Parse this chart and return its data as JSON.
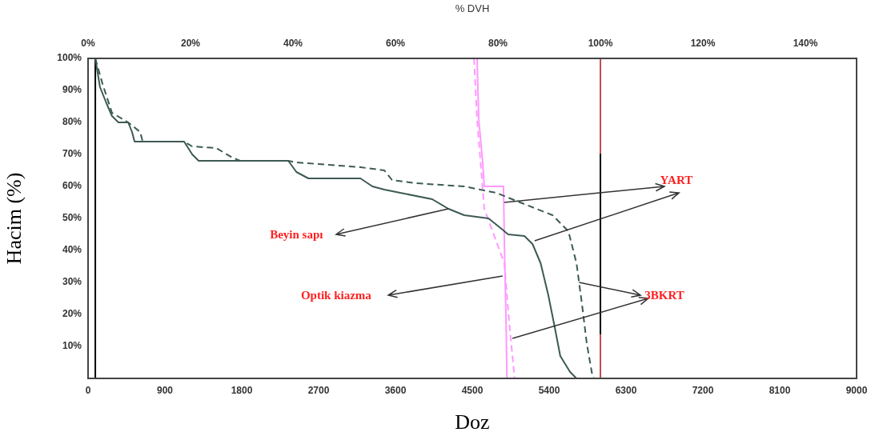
{
  "chart_data": {
    "type": "line",
    "x2label": "% DVH",
    "xlabel": "Doz",
    "ylabel": "Hacim (%)",
    "xlim": [
      0,
      9000
    ],
    "xticks": [
      0,
      900,
      1800,
      2700,
      3600,
      4500,
      5400,
      6300,
      7200,
      8100,
      9000
    ],
    "x2lim": [
      0,
      150
    ],
    "x2ticks": [
      {
        "value": 0,
        "label": "0%"
      },
      {
        "value": 20,
        "label": "20%"
      },
      {
        "value": 40,
        "label": "40%"
      },
      {
        "value": 60,
        "label": "60%"
      },
      {
        "value": 80,
        "label": "80%"
      },
      {
        "value": 100,
        "label": "100%"
      },
      {
        "value": 120,
        "label": "120%"
      },
      {
        "value": 140,
        "label": "140%"
      }
    ],
    "ylim": [
      0,
      100
    ],
    "yticks": [
      {
        "value": 10,
        "label": "10%"
      },
      {
        "value": 20,
        "label": "20%"
      },
      {
        "value": 30,
        "label": "30%"
      },
      {
        "value": 40,
        "label": "40%"
      },
      {
        "value": 50,
        "label": "50%"
      },
      {
        "value": 60,
        "label": "60%"
      },
      {
        "value": 70,
        "label": "70%"
      },
      {
        "value": 80,
        "label": "80%"
      },
      {
        "value": 90,
        "label": "90%"
      },
      {
        "value": 100,
        "label": "100%"
      }
    ],
    "grid": false,
    "legend": false,
    "marker": "none",
    "series": [
      {
        "color": "#3d5a54",
        "line_style": "solid",
        "x": [
          85,
          140,
          215,
          280,
          356,
          470,
          515,
          545,
          1125,
          1220,
          1295,
          2345,
          2440,
          2580,
          3190,
          3330,
          3470,
          3655,
          4030,
          4220,
          4405,
          4690,
          4830,
          4920,
          5110,
          5205,
          5300,
          5390,
          5465,
          5530,
          5645,
          5720
        ],
        "values": [
          100,
          91,
          86,
          82,
          80,
          80,
          77,
          74,
          74,
          70,
          68,
          68,
          64.5,
          62.5,
          62.5,
          60,
          59,
          58,
          56,
          53,
          51,
          50,
          47,
          45,
          44.5,
          42,
          36,
          26,
          16,
          7,
          2,
          0
        ]
      },
      {
        "color": "#3d5a54",
        "line_style": "dashed",
        "x": [
          85,
          170,
          280,
          470,
          610,
          640,
          1125,
          1220,
          1500,
          1690,
          1780,
          2345,
          2440,
          3190,
          3470,
          3560,
          3845,
          4405,
          4780,
          5060,
          5440,
          5625,
          5720,
          5785,
          5840,
          5905,
          5925
        ],
        "values": [
          100,
          92,
          83,
          80,
          77,
          74,
          74,
          72.5,
          72,
          69,
          68,
          68,
          67.5,
          66,
          65,
          62,
          61,
          60,
          58,
          55,
          51,
          46,
          36,
          23,
          11,
          1,
          0
        ]
      },
      {
        "color": "#ff99ff",
        "line_style": "solid",
        "x": [
          4556,
          4575,
          4620,
          4640,
          4865,
          4875,
          4895,
          4905
        ],
        "values": [
          100,
          81,
          68,
          60,
          60,
          43,
          18,
          0
        ]
      },
      {
        "color": "#ff99ff",
        "line_style": "dashed",
        "x": [
          4520,
          4556,
          4595,
          4640,
          4875,
          4930,
          4995
        ],
        "values": [
          100,
          81,
          68,
          53,
          36,
          18,
          0
        ]
      },
      {
        "color": "#000000",
        "line_style": "solid",
        "x": [
          6000,
          6000
        ],
        "values": [
          70,
          14
        ]
      }
    ],
    "ref_lines": [
      {
        "axis": "x",
        "value": 85,
        "color": "#000000"
      },
      {
        "axis": "x",
        "value": 6000,
        "color": "#c0504d"
      }
    ],
    "annotations": [
      {
        "text": "YART",
        "x": 4875,
        "y": 55
      },
      {
        "text": "3BKRT",
        "x": 5750,
        "y": 30
      },
      {
        "text": "Beyin sapı",
        "x": 4220,
        "y": 53
      },
      "Optik kiazma"
    ]
  }
}
